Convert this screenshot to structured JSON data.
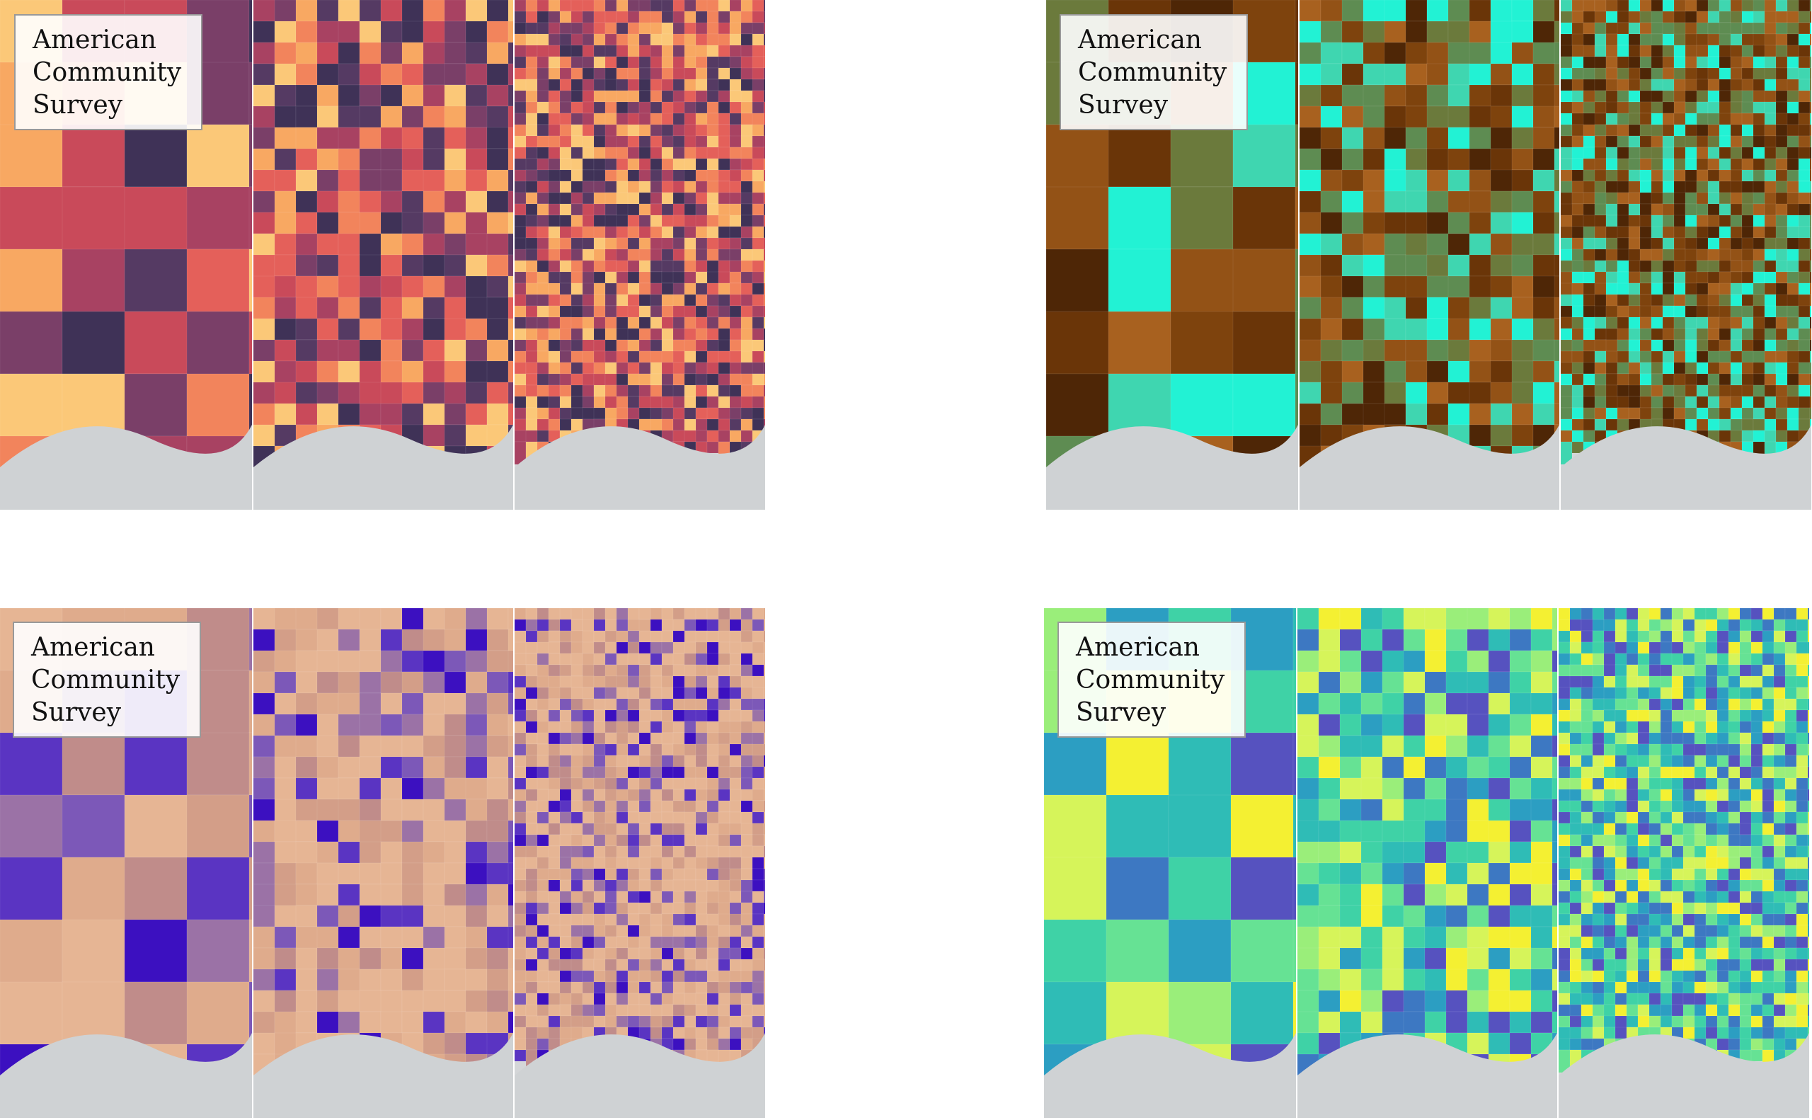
{
  "tiles": [
    {
      "label": "American Community Survey"
    },
    {
      "label": "American Community Survey"
    },
    {
      "label": "American Community Survey"
    },
    {
      "label": "American Community Survey"
    }
  ]
}
